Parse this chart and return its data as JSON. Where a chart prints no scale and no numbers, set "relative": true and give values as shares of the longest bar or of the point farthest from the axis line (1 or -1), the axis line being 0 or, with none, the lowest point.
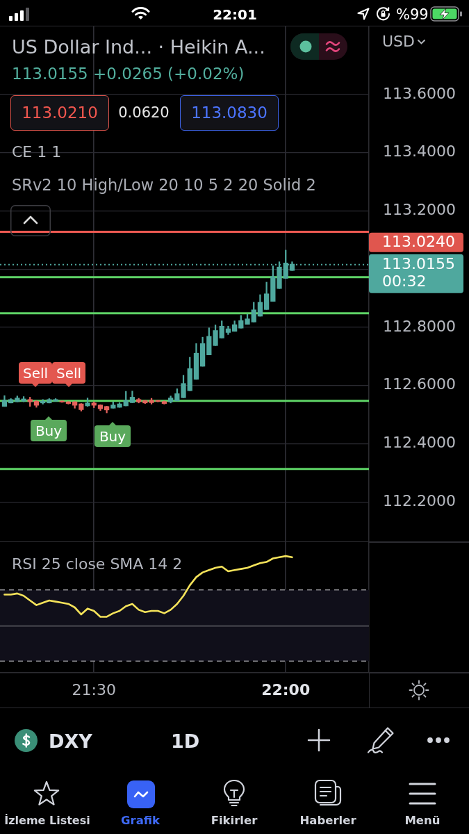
{
  "chart_data": [
    {
      "type": "candlestick",
      "title": "US Dollar Ind... · Heikin A...",
      "subtitle": "113.0155 +0.0265 (+0.02%)",
      "x": [
        21.2667,
        21.2833,
        21.3,
        21.3167,
        21.3333,
        21.35,
        21.3667,
        21.3833,
        21.4,
        21.4167,
        21.4333,
        21.45,
        21.4667,
        21.4833,
        21.5,
        21.5167,
        21.5333,
        21.55,
        21.5667,
        21.5833,
        21.6,
        21.6167,
        21.6333,
        21.65,
        21.6667,
        21.6833,
        21.7,
        21.7167,
        21.7333,
        21.75,
        21.7667,
        21.7833,
        21.8,
        21.8167,
        21.8333,
        21.85,
        21.8667,
        21.8833,
        21.9,
        21.9167,
        21.9333,
        21.95,
        21.9667,
        21.9833,
        22,
        22.0167
      ],
      "ohlc": [
        [
          112.528,
          112.565,
          112.528,
          112.549
        ],
        [
          112.54,
          112.555,
          112.54,
          112.552
        ],
        [
          112.544,
          112.564,
          112.544,
          112.557
        ],
        [
          112.546,
          112.562,
          112.544,
          112.554
        ],
        [
          112.552,
          112.56,
          112.528,
          112.544
        ],
        [
          112.546,
          112.548,
          112.525,
          112.532
        ],
        [
          112.54,
          112.552,
          112.536,
          112.546
        ],
        [
          112.54,
          112.555,
          112.54,
          112.552
        ],
        [
          112.546,
          112.555,
          112.546,
          112.552
        ],
        [
          112.546,
          112.547,
          112.542,
          112.543
        ],
        [
          112.544,
          112.545,
          112.536,
          112.538
        ],
        [
          112.544,
          112.545,
          112.522,
          112.532
        ],
        [
          112.537,
          112.538,
          112.512,
          112.517
        ],
        [
          112.53,
          112.557,
          112.528,
          112.54
        ],
        [
          112.54,
          112.544,
          112.524,
          112.532
        ],
        [
          112.533,
          112.534,
          112.514,
          112.52
        ],
        [
          112.528,
          112.529,
          112.506,
          112.516
        ],
        [
          112.522,
          112.544,
          112.522,
          112.533
        ],
        [
          112.525,
          112.541,
          112.525,
          112.537
        ],
        [
          112.53,
          112.58,
          112.53,
          112.549
        ],
        [
          112.541,
          112.581,
          112.541,
          112.56
        ],
        [
          112.552,
          112.556,
          112.54,
          112.544
        ],
        [
          112.548,
          112.549,
          112.538,
          112.54
        ],
        [
          112.549,
          112.556,
          112.536,
          112.541
        ],
        [
          112.548,
          112.549,
          112.544,
          112.545
        ],
        [
          112.545,
          112.547,
          112.536,
          112.538
        ],
        [
          112.544,
          112.564,
          112.54,
          112.557
        ],
        [
          112.547,
          112.589,
          112.547,
          112.572
        ],
        [
          112.558,
          112.635,
          112.558,
          112.607
        ],
        [
          112.582,
          112.697,
          112.582,
          112.658
        ],
        [
          112.621,
          112.744,
          112.621,
          112.711
        ],
        [
          112.666,
          112.766,
          112.666,
          112.744
        ],
        [
          112.705,
          112.798,
          112.705,
          112.769
        ],
        [
          112.737,
          112.808,
          112.737,
          112.789
        ],
        [
          112.763,
          112.822,
          112.763,
          112.804
        ],
        [
          112.782,
          112.804,
          112.775,
          112.795
        ],
        [
          112.786,
          112.822,
          112.786,
          112.809
        ],
        [
          112.797,
          112.841,
          112.797,
          112.823
        ],
        [
          112.81,
          112.845,
          112.81,
          112.829
        ],
        [
          112.818,
          112.886,
          112.818,
          112.86
        ],
        [
          112.838,
          112.912,
          112.838,
          112.886
        ],
        [
          112.861,
          112.955,
          112.861,
          112.915
        ],
        [
          112.889,
          113.011,
          112.889,
          112.974
        ],
        [
          112.933,
          113.025,
          112.933,
          113.007
        ],
        [
          112.968,
          113.065,
          112.968,
          113.021
        ],
        [
          112.995,
          113.025,
          112.995,
          113.017
        ]
      ],
      "colors": [
        "#4fa89e",
        "#4fa89e",
        "#4fa89e",
        "#4fa89e",
        "#e5625c",
        "#e5625c",
        "#4fa89e",
        "#4fa89e",
        "#4fa89e",
        "#e5625c",
        "#e5625c",
        "#e5625c",
        "#e5625c",
        "#4fa89e",
        "#e5625c",
        "#e5625c",
        "#e5625c",
        "#4fa89e",
        "#4fa89e",
        "#4fa89e",
        "#4fa89e",
        "#e5625c",
        "#e5625c",
        "#e5625c",
        "#e5625c",
        "#e5625c",
        "#4fa89e",
        "#4fa89e",
        "#4fa89e",
        "#4fa89e",
        "#4fa89e",
        "#4fa89e",
        "#4fa89e",
        "#4fa89e",
        "#4fa89e",
        "#4fa89e",
        "#4fa89e",
        "#4fa89e",
        "#4fa89e",
        "#4fa89e",
        "#4fa89e",
        "#4fa89e",
        "#4fa89e",
        "#4fa89e",
        "#4fa89e",
        "#4fa89e"
      ],
      "xlim": [
        21.255,
        22.217
      ],
      "ylim": [
        112.062,
        113.836
      ],
      "yticks": [
        {
          "value": 112.2,
          "label": "112.2000"
        },
        {
          "value": 112.4,
          "label": "112.4000"
        },
        {
          "value": 112.6,
          "label": "112.6000"
        },
        {
          "value": 112.8,
          "label": "112.8000"
        },
        {
          "value": 113,
          "label": null
        },
        {
          "value": 113.2,
          "label": "113.2000"
        },
        {
          "value": 113.4,
          "label": "113.4000"
        },
        {
          "value": 113.6,
          "label": "113.6000"
        }
      ],
      "grid": true,
      "tick_labels": "y",
      "ref_lines": [
        {
          "axis": "y",
          "value": 113.128,
          "color": "#ef5a52"
        },
        {
          "axis": "y",
          "value": 112.972,
          "color": "#5ed366"
        },
        {
          "axis": "y",
          "value": 112.848,
          "color": "#5ed366"
        },
        {
          "axis": "y",
          "value": 112.547,
          "color": "#5ed366"
        },
        {
          "axis": "y",
          "value": 112.313,
          "color": "#5ed366"
        },
        {
          "axis": "y",
          "value": 113.0155,
          "label": "113.0155",
          "color": "#4fa89e",
          "line_style": "dotted"
        }
      ],
      "annotations": [
        "22:01",
        "%99",
        "USD",
        "113.0210",
        "0.0620",
        "113.0830",
        "CE 1 1",
        "SRv2 10 High/Low 20 10 5 2 20 Solid 2",
        "113.0240",
        "00:32",
        "Sell",
        "Sell",
        "Buy",
        "Buy"
      ]
    },
    {
      "type": "line",
      "title": "RSI 25 close SMA 14 2",
      "relative": true,
      "x": [
        21.2667,
        21.2833,
        21.3,
        21.3167,
        21.3333,
        21.35,
        21.3667,
        21.3833,
        21.4,
        21.4167,
        21.4333,
        21.45,
        21.4667,
        21.4833,
        21.5,
        21.5167,
        21.5333,
        21.55,
        21.5667,
        21.5833,
        21.6,
        21.6167,
        21.6333,
        21.65,
        21.6667,
        21.6833,
        21.7,
        21.7167,
        21.7333,
        21.75,
        21.7667,
        21.7833,
        21.8,
        21.8167,
        21.8333,
        21.85,
        21.8667,
        21.8833,
        21.9,
        21.9167,
        21.9333,
        21.95,
        21.9667,
        21.9833,
        22,
        22.0167
      ],
      "values": [
        0.67,
        0.67,
        0.68,
        0.66,
        0.62,
        0.58,
        0.6,
        0.62,
        0.61,
        0.6,
        0.59,
        0.56,
        0.5,
        0.55,
        0.53,
        0.48,
        0.48,
        0.51,
        0.53,
        0.57,
        0.59,
        0.54,
        0.52,
        0.53,
        0.53,
        0.51,
        0.54,
        0.59,
        0.66,
        0.75,
        0.82,
        0.86,
        0.88,
        0.9,
        0.91,
        0.87,
        0.88,
        0.89,
        0.9,
        0.92,
        0.94,
        0.95,
        0.98,
        0.99,
        1,
        0.99
      ],
      "color": "#f5e35a",
      "xlim": [
        21.255,
        22.217
      ],
      "xticks": [
        {
          "value": 21.5,
          "label": "21:30"
        },
        {
          "value": 22,
          "label": "22:00"
        }
      ],
      "grid": "x",
      "tick_labels": "x",
      "ref_lines": [
        {
          "axis": "y",
          "value": 0.71,
          "color": "#8b8b90",
          "line_style": "dashed"
        },
        {
          "axis": "y",
          "value": 0.4,
          "color": "#5a5a60"
        },
        {
          "axis": "y",
          "value": 0.1,
          "color": "#8b8b90",
          "line_style": "dashed"
        }
      ],
      "bands": [
        {
          "axis": "y",
          "from": 0.1,
          "to": 0.71,
          "color": "#100f1a"
        }
      ],
      "annotations": [
        "DXY",
        "1D",
        "İzleme Listesi",
        "Grafik",
        "Fikirler",
        "Haberler",
        "Menü"
      ]
    }
  ]
}
